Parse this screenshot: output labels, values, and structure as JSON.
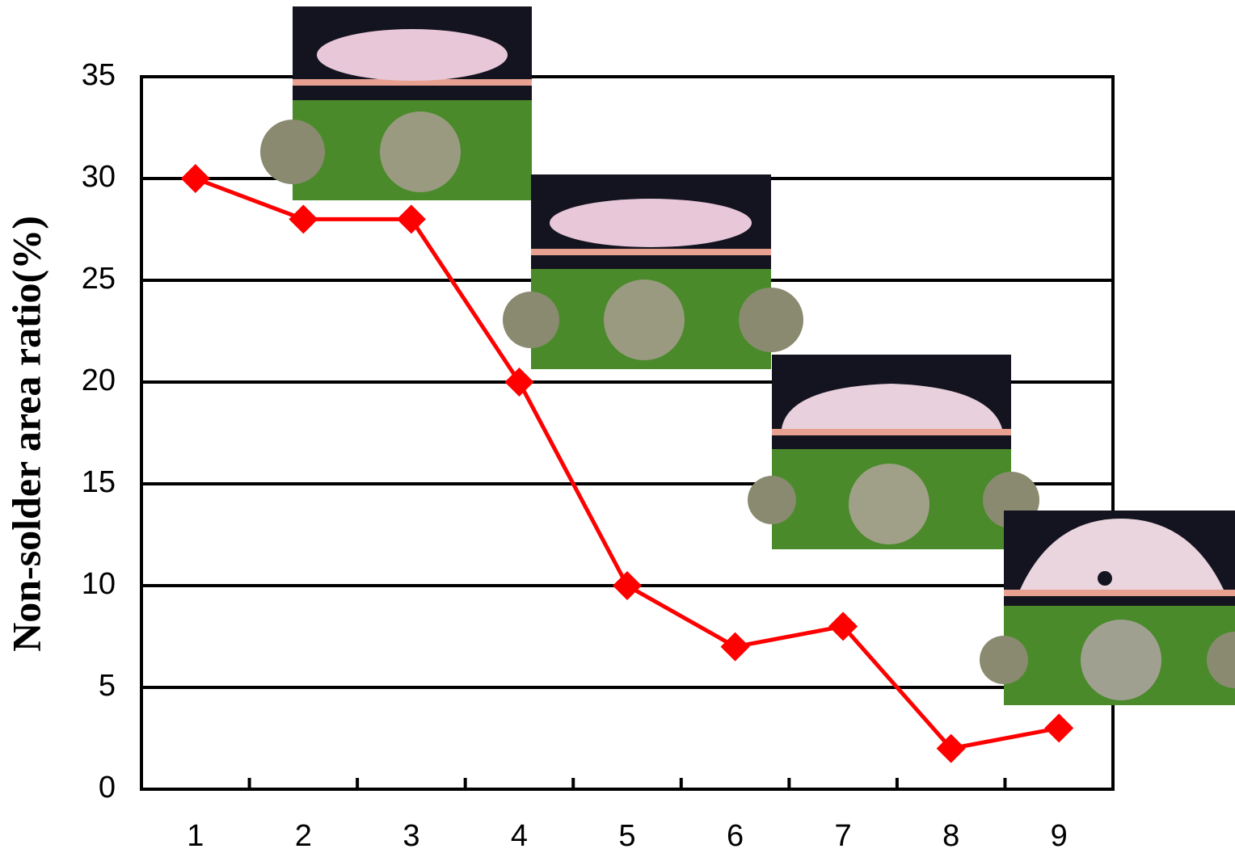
{
  "chart_data": {
    "type": "line",
    "y_label": "Non-solder area ratio(%)",
    "categories": [
      "1",
      "2",
      "3",
      "4",
      "5",
      "6",
      "7",
      "8",
      "9"
    ],
    "series": [
      {
        "name": "Non-solder area ratio",
        "color": "#ff0000",
        "values": [
          30,
          28,
          28,
          20,
          10,
          7,
          8,
          2,
          3
        ]
      }
    ],
    "ylim": [
      0,
      35
    ],
    "yticks": [
      0,
      5,
      10,
      15,
      20,
      25,
      30,
      35
    ],
    "grid": true
  }
}
